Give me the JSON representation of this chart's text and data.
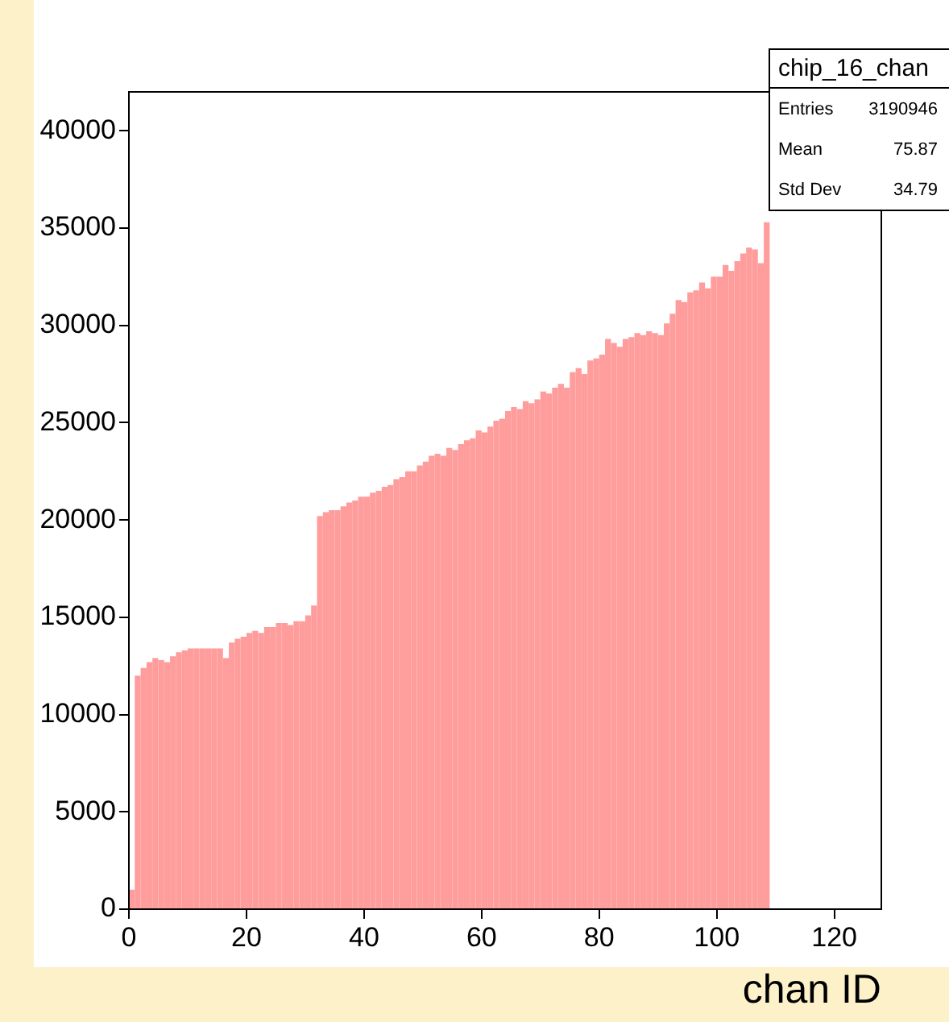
{
  "chart_data": {
    "type": "histogram",
    "title": "chip_16_chan",
    "xlabel": "chan ID",
    "annotations": [
      "Entries 3190946",
      "Mean 75.87",
      "Std Dev 34.79"
    ],
    "bins": [
      0,
      1,
      2,
      3,
      4,
      5,
      6,
      7,
      8,
      9,
      10,
      11,
      12,
      13,
      14,
      15,
      16,
      17,
      18,
      19,
      20,
      21,
      22,
      23,
      24,
      25,
      26,
      27,
      28,
      29,
      30,
      31,
      32,
      33,
      34,
      35,
      36,
      37,
      38,
      39,
      40,
      41,
      42,
      43,
      44,
      45,
      46,
      47,
      48,
      49,
      50,
      51,
      52,
      53,
      54,
      55,
      56,
      57,
      58,
      59,
      60,
      61,
      62,
      63,
      64,
      65,
      66,
      67,
      68,
      69,
      70,
      71,
      72,
      73,
      74,
      75,
      76,
      77,
      78,
      79,
      80,
      81,
      82,
      83,
      84,
      85,
      86,
      87,
      88,
      89,
      90,
      91,
      92,
      93,
      94,
      95,
      96,
      97,
      98,
      99,
      100,
      101,
      102,
      103,
      104,
      105,
      106,
      107,
      108,
      109,
      110,
      111,
      112,
      113,
      114,
      115,
      116,
      117,
      118,
      119,
      120,
      121,
      122,
      123,
      124,
      125,
      126,
      127,
      128
    ],
    "values": [
      1000,
      12000,
      12400,
      12700,
      12900,
      12800,
      12700,
      13000,
      13200,
      13300,
      13400,
      13400,
      13400,
      13400,
      13400,
      13400,
      12900,
      13700,
      13900,
      14000,
      14200,
      14300,
      14200,
      14500,
      14500,
      14700,
      14700,
      14600,
      14800,
      14800,
      15100,
      15600,
      20200,
      20400,
      20500,
      20500,
      20700,
      20900,
      21000,
      21200,
      21200,
      21400,
      21500,
      21700,
      21800,
      22100,
      22200,
      22500,
      22500,
      22800,
      23000,
      23300,
      23400,
      23300,
      23700,
      23600,
      23900,
      24100,
      24200,
      24600,
      24500,
      24800,
      25100,
      25200,
      25600,
      25800,
      25700,
      26100,
      26000,
      26200,
      26600,
      26500,
      26800,
      27000,
      26800,
      27600,
      27800,
      27500,
      28200,
      28300,
      28500,
      29300,
      29100,
      28900,
      29300,
      29400,
      29600,
      29500,
      29700,
      29600,
      29500,
      30100,
      30600,
      31300,
      31200,
      31700,
      31800,
      32200,
      31900,
      32500,
      32500,
      33100,
      32800,
      33300,
      33700,
      34000,
      33900,
      33200,
      35300,
      null,
      null,
      null,
      null,
      null,
      null,
      null,
      null,
      null,
      null,
      null,
      null,
      null,
      null,
      null,
      null,
      null,
      null,
      null
    ],
    "color": "#ff9c9c",
    "xlim": [
      0,
      128
    ],
    "xticks": [
      0,
      20,
      40,
      60,
      80,
      100,
      120
    ],
    "ylim": [
      0,
      42000
    ],
    "yticks": [
      0,
      {
        "value": 5000,
        "label": "5000"
      },
      {
        "value": 10000,
        "label": "10000"
      },
      {
        "value": 15000,
        "label": "15000"
      },
      {
        "value": 20000,
        "label": "20000"
      },
      {
        "value": 25000,
        "label": "25000"
      },
      {
        "value": 30000,
        "label": "30000"
      },
      {
        "value": 35000,
        "label": "35000"
      },
      {
        "value": 40000,
        "label": "40000"
      }
    ],
    "grid": false,
    "legend": false
  }
}
